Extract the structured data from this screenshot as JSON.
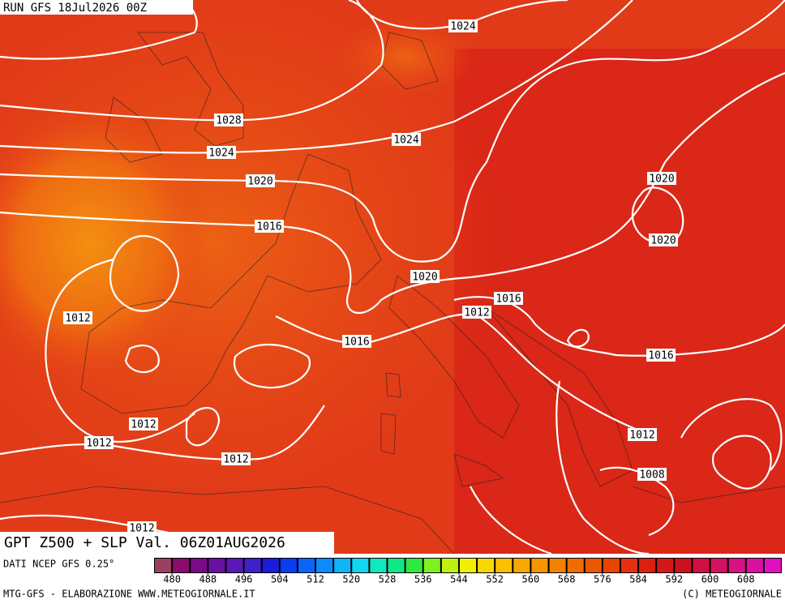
{
  "header": {
    "run": "RUN GFS 18Jul2026 00Z"
  },
  "isobar_labels": [
    "1024",
    "1028",
    "1024",
    "1024",
    "1020",
    "1016",
    "1020",
    "1020",
    "1020",
    "1016",
    "1012",
    "1012",
    "1016",
    "1016",
    "1012",
    "1012",
    "1012",
    "1012",
    "1008",
    "1012"
  ],
  "footer": {
    "title": "GPT Z500 + SLP Val. 06Z01AUG2026",
    "source": "DATI NCEP GFS 0.25°",
    "credit": "MTG-GFS - ELABORAZIONE WWW.METEOGIORNALE.IT",
    "copyright": "(C) METEOGIORNALE"
  },
  "colorbar": {
    "range": [
      476,
      616
    ],
    "ticks": [
      480,
      488,
      496,
      504,
      512,
      520,
      528,
      536,
      544,
      552,
      560,
      568,
      576,
      584,
      592,
      600,
      608
    ],
    "colors": [
      "#9c4060",
      "#8a0a6e",
      "#7a0a88",
      "#6a10a0",
      "#5a18b4",
      "#4020c8",
      "#1c1cdc",
      "#0a3cf0",
      "#0a64f8",
      "#0a8cfa",
      "#10b4f8",
      "#10d8f0",
      "#10e8c0",
      "#10e888",
      "#30e840",
      "#80f020",
      "#c0f010",
      "#f0f000",
      "#f8d800",
      "#f8c000",
      "#f8a800",
      "#f89400",
      "#f48000",
      "#f06c00",
      "#ec5800",
      "#e84400",
      "#e43010",
      "#dc2010",
      "#d41818",
      "#cc1020",
      "#d01040",
      "#d41060",
      "#d81080",
      "#dc10a0",
      "#e010c0"
    ]
  }
}
